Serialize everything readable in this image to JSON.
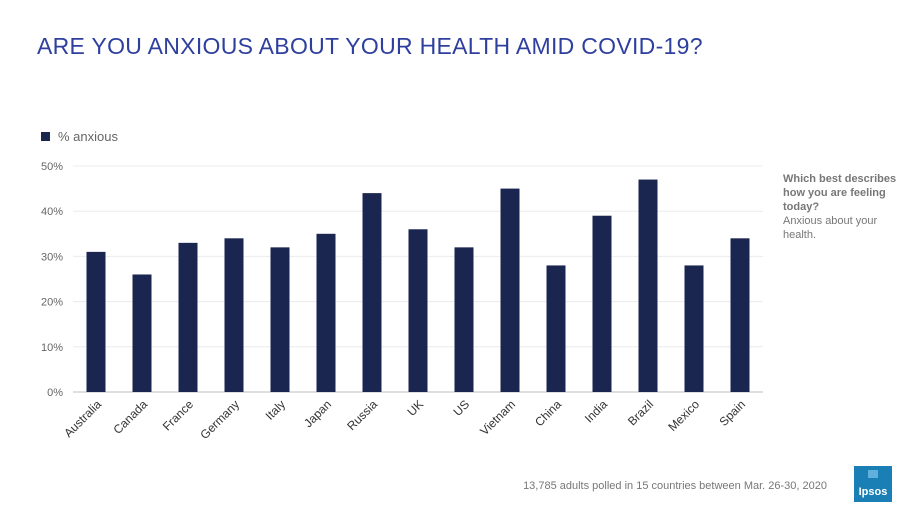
{
  "title": "ARE YOU ANXIOUS ABOUT YOUR HEALTH AMID COVID-19?",
  "side_note": {
    "question": "Which best describes how you are feeling today?",
    "answer": "Anxious about your health."
  },
  "footnote": "13,785 adults polled in 15 countries between Mar. 26-30, 2020",
  "logo_text": "Ipsos",
  "colors": {
    "bar": "#1a2550",
    "title": "#2e3f9e",
    "logo": "#1a7fb5"
  },
  "chart_data": {
    "type": "bar",
    "categories": [
      "Australia",
      "Canada",
      "France",
      "Germany",
      "Italy",
      "Japan",
      "Russia",
      "UK",
      "US",
      "Vietnam",
      "China",
      "India",
      "Brazil",
      "Mexico",
      "Spain"
    ],
    "series": [
      {
        "name": "% anxious",
        "values": [
          31,
          26,
          33,
          34,
          32,
          35,
          44,
          36,
          32,
          45,
          28,
          39,
          47,
          28,
          34
        ]
      }
    ],
    "yticks": [
      "0%",
      "10%",
      "20%",
      "30%",
      "40%",
      "50%"
    ],
    "ylim": [
      0,
      50
    ],
    "grid": true,
    "legend": "top-left"
  }
}
